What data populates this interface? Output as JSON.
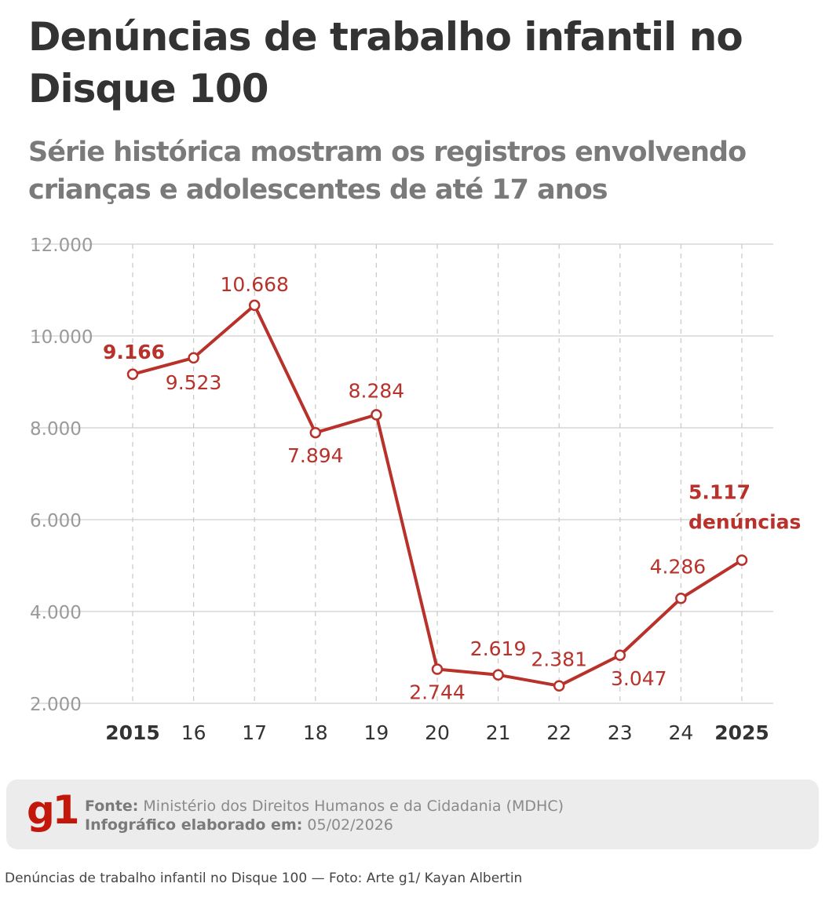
{
  "title": "Denúncias de trabalho infantil no Disque 100",
  "subtitle": "Série histórica mostram os registros envolvendo crianças e adolescentes de até 17 anos",
  "chart_data": {
    "type": "line",
    "x": [
      "2015",
      "16",
      "17",
      "18",
      "19",
      "20",
      "21",
      "22",
      "23",
      "24",
      "2025"
    ],
    "values": [
      9166,
      9523,
      10668,
      7894,
      8284,
      2744,
      2619,
      2381,
      3047,
      4286,
      5117
    ],
    "data_labels": [
      "9.166",
      "9.523",
      "10.668",
      "7.894",
      "8.284",
      "2.744",
      "2.619",
      "2.381",
      "3.047",
      "4.286",
      "5.117"
    ],
    "last_label_suffix": "denúncias",
    "yticks": [
      2000,
      4000,
      6000,
      8000,
      10000,
      12000
    ],
    "ytick_labels": [
      "2.000",
      "4.000",
      "6.000",
      "8.000",
      "10.000",
      "12.000"
    ],
    "ylim": [
      2000,
      12000
    ],
    "grid": true,
    "color": "#b8322b"
  },
  "footer": {
    "logo": "g1",
    "source_label": "Fonte:",
    "source": "Ministério dos Direitos Humanos e da Cidadania (MDHC)",
    "date_label": "Infográfico elaborado em:",
    "date": "05/02/2026"
  },
  "caption": "Denúncias de trabalho infantil no Disque 100 — Foto: Arte g1/ Kayan Albertin"
}
